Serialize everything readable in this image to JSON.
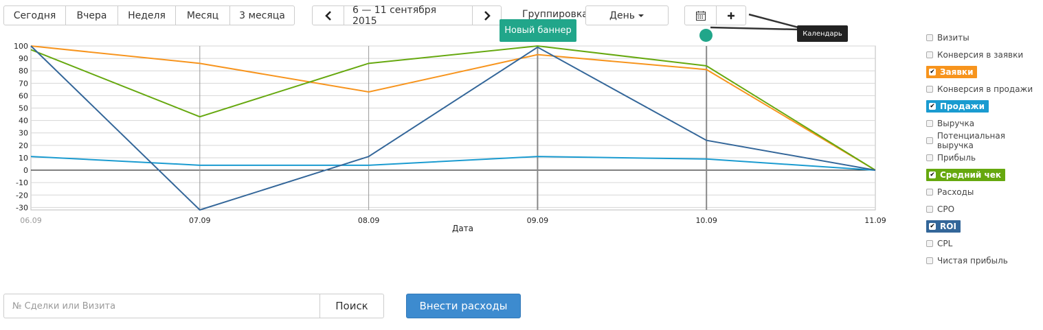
{
  "toolbar": {
    "periods": [
      "Сегодня",
      "Вчера",
      "Неделя",
      "Месяц",
      "3 месяца"
    ],
    "date_range": "6 — 11 сентября 2015",
    "grouping_label": "Группировка",
    "grouping_value": "День",
    "prev_icon": "chevron-left-icon",
    "next_icon": "chevron-right-icon",
    "calendar_icon": "calendar-icon",
    "plus_icon": "plus-icon"
  },
  "tooltips": {
    "banner": "Новый баннер",
    "calendar": "Календарь"
  },
  "legend": [
    {
      "label": "Визиты",
      "checked": false,
      "color": ""
    },
    {
      "label": "Конверсия в заявки",
      "checked": false,
      "color": ""
    },
    {
      "label": "Заявки",
      "checked": true,
      "color": "#f7941d"
    },
    {
      "label": "Конверсия в продажи",
      "checked": false,
      "color": ""
    },
    {
      "label": "Продажи",
      "checked": true,
      "color": "#1a9bd0"
    },
    {
      "label": "Выручка",
      "checked": false,
      "color": ""
    },
    {
      "label": "Потенциальная выручка",
      "checked": false,
      "color": ""
    },
    {
      "label": "Прибыль",
      "checked": false,
      "color": ""
    },
    {
      "label": "Средний чек",
      "checked": true,
      "color": "#66a80f"
    },
    {
      "label": "Расходы",
      "checked": false,
      "color": ""
    },
    {
      "label": "CPO",
      "checked": false,
      "color": ""
    },
    {
      "label": "ROI",
      "checked": true,
      "color": "#336699"
    },
    {
      "label": "CPL",
      "checked": false,
      "color": ""
    },
    {
      "label": "Чистая прибыль",
      "checked": false,
      "color": ""
    }
  ],
  "search": {
    "placeholder": "№ Сделки или Визита",
    "button": "Поиск"
  },
  "primary_action": "Внести расходы",
  "chart_data": {
    "type": "line",
    "x": [
      "06.09",
      "07.09",
      "08.09",
      "09.09",
      "10.09",
      "11.09"
    ],
    "xlabel": "Дата",
    "ylim": [
      -32,
      100
    ],
    "yticks": [
      100,
      90,
      80,
      70,
      60,
      50,
      40,
      30,
      20,
      10,
      0,
      -10,
      -20,
      -30
    ],
    "grid": true,
    "series": [
      {
        "name": "Заявки",
        "color": "#f7941d",
        "values": [
          100,
          86,
          63,
          93,
          81,
          0
        ]
      },
      {
        "name": "Продажи",
        "color": "#1a9bd0",
        "values": [
          11,
          4,
          4,
          11,
          9,
          0
        ]
      },
      {
        "name": "Средний чек",
        "color": "#66a80f",
        "values": [
          97,
          43,
          86,
          100,
          84,
          0
        ]
      },
      {
        "name": "ROI",
        "color": "#336699",
        "values": [
          100,
          -32,
          11,
          99,
          24,
          0
        ]
      }
    ]
  }
}
